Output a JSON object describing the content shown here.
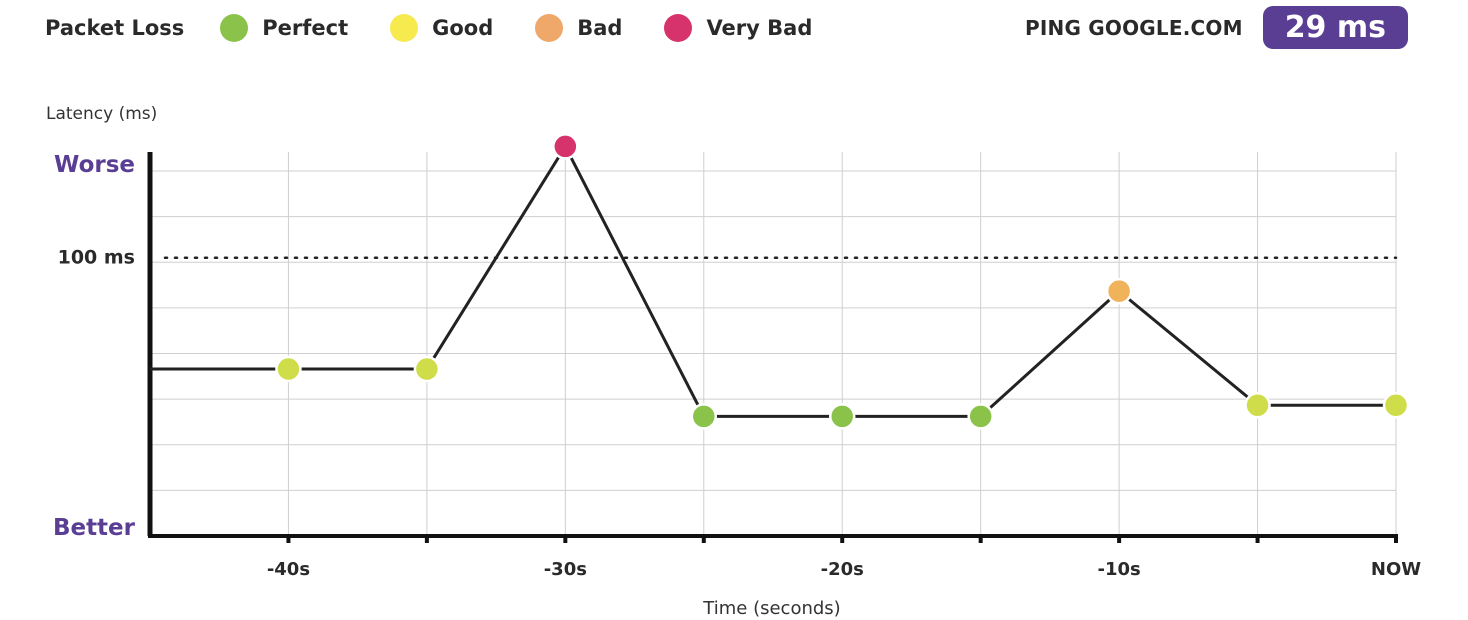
{
  "legend": {
    "title": "Packet Loss",
    "items": [
      {
        "label": "Perfect",
        "color": "#8bc34a"
      },
      {
        "label": "Good",
        "color": "#f7ea4e"
      },
      {
        "label": "Bad",
        "color": "#f0a86a"
      },
      {
        "label": "Very Bad",
        "color": "#d6336c"
      }
    ]
  },
  "ping": {
    "label": "PING GOOGLE.COM",
    "value": "29 ms",
    "badge_color": "#5a3e93"
  },
  "chart_data": {
    "type": "line",
    "ylabel": "Latency (ms)",
    "xlabel": "Time (seconds)",
    "y_extremes": {
      "top": "Worse",
      "bottom": "Better"
    },
    "reference_line": {
      "label": "100 ms",
      "value": 100,
      "style": "dotted"
    },
    "ylim": [
      0,
      138
    ],
    "x_ticks": [
      {
        "label": "-40s",
        "value": -40
      },
      {
        "label": "-30s",
        "value": -30
      },
      {
        "label": "-20s",
        "value": -20
      },
      {
        "label": "-10s",
        "value": -10
      },
      {
        "label": "NOW",
        "value": 0
      }
    ],
    "xlim": [
      -45,
      0
    ],
    "line_start": {
      "x": -45,
      "y": 60
    },
    "points": [
      {
        "x": -40,
        "y": 60,
        "status": "Good",
        "color": "#cfdd4a"
      },
      {
        "x": -35,
        "y": 60,
        "status": "Good",
        "color": "#cfdd4a"
      },
      {
        "x": -30,
        "y": 140,
        "status": "Very Bad",
        "color": "#d6336c"
      },
      {
        "x": -25,
        "y": 43,
        "status": "Perfect",
        "color": "#8bc34a"
      },
      {
        "x": -20,
        "y": 43,
        "status": "Perfect",
        "color": "#8bc34a"
      },
      {
        "x": -15,
        "y": 43,
        "status": "Perfect",
        "color": "#8bc34a"
      },
      {
        "x": -10,
        "y": 88,
        "status": "Bad",
        "color": "#f0b25a"
      },
      {
        "x": -5,
        "y": 47,
        "status": "Good",
        "color": "#cfdd4a"
      },
      {
        "x": 0,
        "y": 47,
        "status": "Good",
        "color": "#cfdd4a"
      }
    ],
    "grid": true,
    "legend_position": "top-left"
  }
}
